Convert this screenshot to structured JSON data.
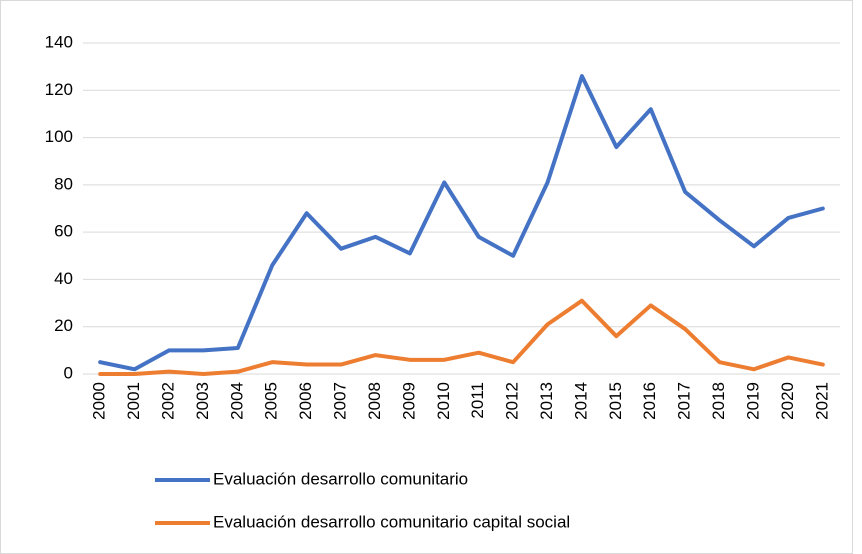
{
  "chart_data": {
    "type": "line",
    "categories": [
      "2000",
      "2001",
      "2002",
      "2003",
      "2004",
      "2005",
      "2006",
      "2007",
      "2008",
      "2009",
      "2010",
      "2011",
      "2012",
      "2013",
      "2014",
      "2015",
      "2016",
      "2017",
      "2018",
      "2019",
      "2020",
      "2021"
    ],
    "series": [
      {
        "name": "Evaluación desarrollo comunitario",
        "color": "#4472c4",
        "values": [
          5,
          2,
          10,
          10,
          11,
          46,
          68,
          53,
          58,
          51,
          81,
          58,
          50,
          81,
          126,
          96,
          112,
          77,
          65,
          54,
          66,
          70
        ]
      },
      {
        "name": "Evaluación desarrollo comunitario capital social",
        "color": "#ed7d31",
        "values": [
          0,
          0,
          1,
          0,
          1,
          5,
          4,
          4,
          8,
          6,
          6,
          9,
          5,
          21,
          31,
          16,
          29,
          19,
          5,
          2,
          7,
          4
        ]
      }
    ],
    "ylim": [
      0,
      140
    ],
    "yticks": [
      0,
      20,
      40,
      60,
      80,
      100,
      120,
      140
    ],
    "grid": true,
    "legend": "bottom"
  }
}
